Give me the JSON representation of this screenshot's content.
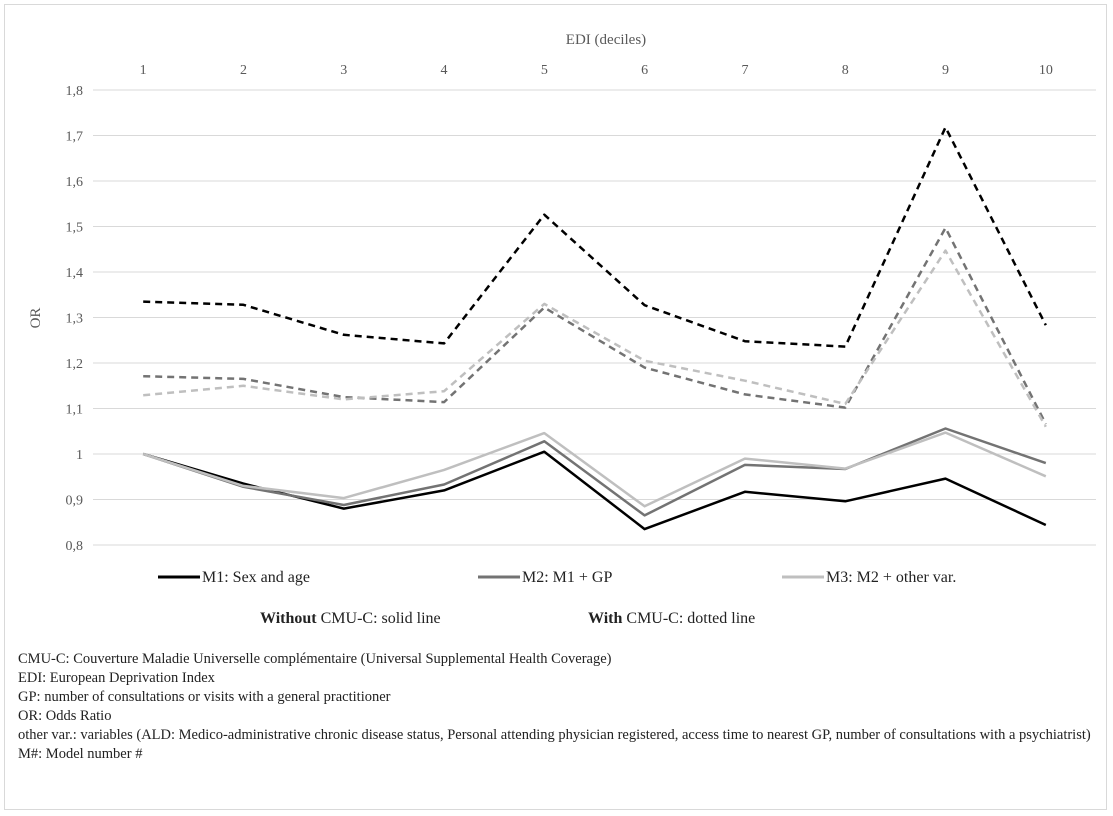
{
  "chart_data": {
    "type": "line",
    "title": "EDI (deciles)",
    "ylabel": "OR",
    "xlabel": "",
    "categories": [
      "1",
      "2",
      "3",
      "4",
      "5",
      "6",
      "7",
      "8",
      "9",
      "10"
    ],
    "ylim": [
      0.8,
      1.8
    ],
    "yticks": [
      "0,8",
      "0,9",
      "1",
      "1,1",
      "1,2",
      "1,3",
      "1,4",
      "1,5",
      "1,6",
      "1,7",
      "1,8"
    ],
    "grid": true,
    "series": [
      {
        "name": "M1: Sex and age",
        "key": "m1",
        "style": "solid",
        "color": "#000000",
        "values": [
          1.0,
          0.935,
          0.88,
          0.92,
          1.005,
          0.835,
          0.917,
          0.896,
          0.946,
          0.844
        ]
      },
      {
        "name": "M2: M1 + GP",
        "key": "m2",
        "style": "solid",
        "color": "#737373",
        "values": [
          1.0,
          0.928,
          0.888,
          0.933,
          1.028,
          0.865,
          0.976,
          0.967,
          1.056,
          0.98
        ]
      },
      {
        "name": "M3: M2 + other var.",
        "key": "m3",
        "style": "solid",
        "color": "#bfbfbf",
        "values": [
          1.0,
          0.93,
          0.903,
          0.965,
          1.046,
          0.885,
          0.99,
          0.968,
          1.047,
          0.951
        ]
      },
      {
        "name": "",
        "key": "m1c",
        "style": "dotted",
        "color": "#000000",
        "values": [
          1.335,
          1.328,
          1.262,
          1.243,
          1.526,
          1.327,
          1.248,
          1.236,
          1.718,
          1.283
        ]
      },
      {
        "name": "",
        "key": "m2c",
        "style": "dotted",
        "color": "#737373",
        "values": [
          1.171,
          1.165,
          1.125,
          1.114,
          1.322,
          1.19,
          1.131,
          1.102,
          1.497,
          1.066
        ]
      },
      {
        "name": "",
        "key": "m3c",
        "style": "dotted",
        "color": "#bfbfbf",
        "values": [
          1.129,
          1.15,
          1.12,
          1.138,
          1.33,
          1.205,
          1.161,
          1.11,
          1.447,
          1.06
        ]
      }
    ],
    "legend": {
      "placement": "bottom",
      "entries": [
        {
          "label": "M1: Sex and age",
          "color": "#000000"
        },
        {
          "label": "M2: M1 + GP",
          "color": "#737373"
        },
        {
          "label": "M3: M2 + other var.",
          "color": "#bfbfbf"
        }
      ],
      "note_without_bold": "Without",
      "note_without_rest": " CMU-C: solid line",
      "note_with_bold": "With",
      "note_with_rest": " CMU-C: dotted line"
    }
  },
  "notes": [
    "CMU-C: Couverture Maladie Universelle complémentaire (Universal Supplemental Health Coverage)",
    "EDI: European Deprivation Index",
    "GP: number of consultations or visits with a general practitioner",
    "OR: Odds Ratio",
    "other var.: variables (ALD: Medico-administrative chronic disease status, Personal attending physician registered, access time to nearest GP, number of consultations with a psychiatrist)",
    "M#: Model number #"
  ]
}
